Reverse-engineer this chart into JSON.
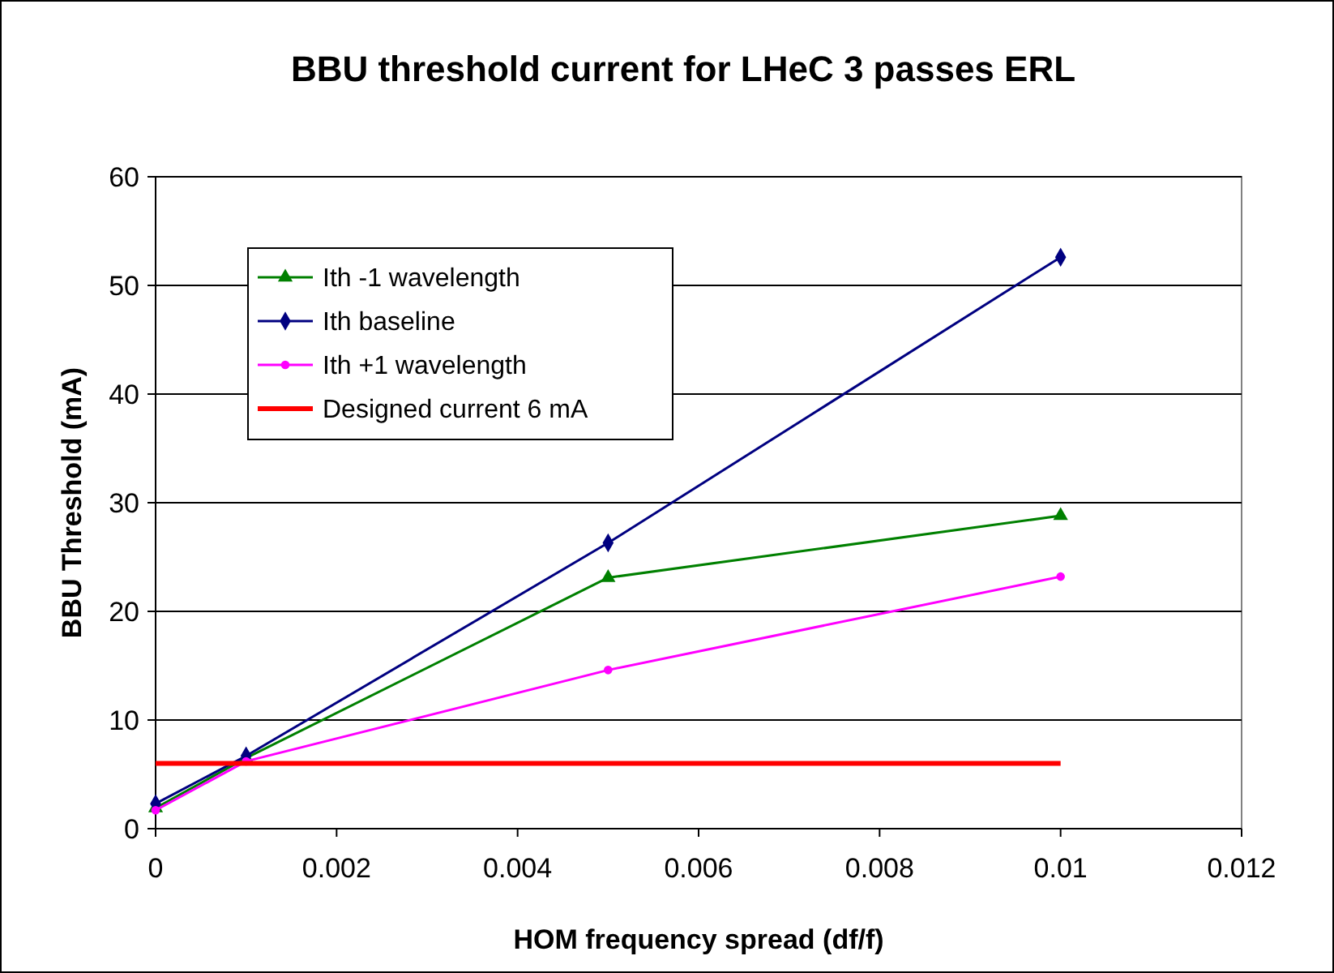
{
  "chart_data": {
    "type": "line",
    "title": "BBU threshold current for LHeC 3 passes ERL",
    "xlabel": "HOM frequency spread (df/f)",
    "ylabel": "BBU Threshold (mA)",
    "xlim": [
      0,
      0.012
    ],
    "xticks": [
      0,
      0.002,
      0.004,
      0.006,
      0.008,
      0.01,
      0.012
    ],
    "ylim": [
      0,
      60
    ],
    "yticks": [
      0,
      10,
      20,
      30,
      40,
      50,
      60
    ],
    "grid": "y",
    "legend": "top left",
    "line_style": "solid",
    "series": [
      {
        "name": "Ith -1 wavelength",
        "color": "#008000",
        "marker": "triangle",
        "x": [
          0,
          0.001,
          0.005,
          0.01
        ],
        "values": [
          1.9,
          6.5,
          23.1,
          28.8
        ]
      },
      {
        "name": "Ith baseline",
        "color": "#000080",
        "marker": "diamond",
        "x": [
          0,
          0.001,
          0.005,
          0.01
        ],
        "values": [
          2.3,
          6.7,
          26.3,
          52.6
        ]
      },
      {
        "name": "Ith +1 wavelength",
        "color": "#ff00ff",
        "marker": "circle",
        "x": [
          0,
          0.001,
          0.005,
          0.01
        ],
        "values": [
          1.7,
          6.2,
          14.6,
          23.2
        ]
      },
      {
        "name": "Designed current 6 mA",
        "color": "#ff0000",
        "marker": "none",
        "x": [
          0,
          0.01
        ],
        "values": [
          6,
          6
        ]
      }
    ]
  }
}
